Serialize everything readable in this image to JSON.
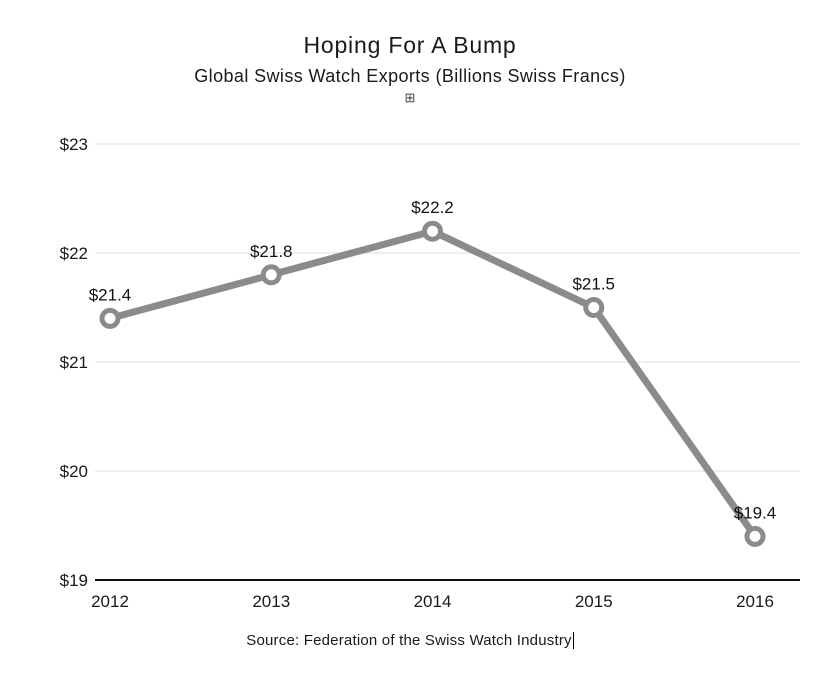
{
  "icons": {
    "expand_glyph": "⊞"
  },
  "chart_data": {
    "type": "line",
    "title": "Hoping For A Bump",
    "subtitle": "Global Swiss Watch Exports (Billions Swiss Francs)",
    "categories": [
      "2012",
      "2013",
      "2014",
      "2015",
      "2016"
    ],
    "values": [
      21.4,
      21.8,
      22.2,
      21.5,
      19.4
    ],
    "value_labels": [
      "$21.4",
      "$21.8",
      "$22.2",
      "$21.5",
      "$19.4"
    ],
    "xlabel": "",
    "ylabel": "",
    "ylim": [
      19,
      23
    ],
    "yticks": [
      19,
      20,
      21,
      22,
      23
    ],
    "ytick_labels": [
      "$19",
      "$20",
      "$21",
      "$22",
      "$23"
    ],
    "grid": true,
    "legend_position": "none",
    "line_color": "#8b8b8b",
    "marker_fill": "#ffffff",
    "grid_color": "#dcdcdc",
    "axis_color": "#111111",
    "source": "Source: Federation of the Swiss Watch Industry"
  }
}
